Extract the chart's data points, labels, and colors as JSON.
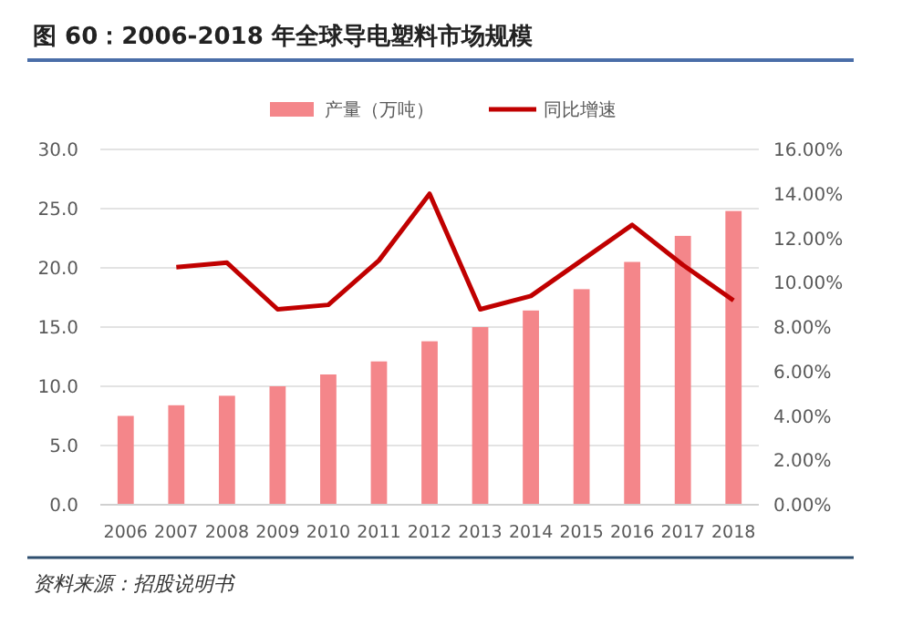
{
  "chart_data": {
    "type": "bar",
    "title": "图 60：2006-2018 年全球导电塑料市场规模",
    "categories": [
      "2006",
      "2007",
      "2008",
      "2009",
      "2010",
      "2011",
      "2012",
      "2013",
      "2014",
      "2015",
      "2016",
      "2017",
      "2018"
    ],
    "series": [
      {
        "name": "产量（万吨）",
        "color": "#f4868a",
        "values": [
          7.5,
          8.4,
          9.2,
          10.0,
          11.0,
          12.1,
          13.8,
          15.0,
          16.4,
          18.2,
          20.5,
          22.7,
          24.8
        ]
      },
      {
        "name": "同比增速",
        "type": "line",
        "axis": "y2",
        "color": "#c00000",
        "values": [
          null,
          10.7,
          10.9,
          8.8,
          9.0,
          11.0,
          14.0,
          8.8,
          9.4,
          11.0,
          12.6,
          10.8,
          9.2
        ]
      }
    ],
    "ylim": [
      0,
      30
    ],
    "yticks": [
      {
        "value": 0,
        "label": "0.0"
      },
      {
        "value": 5,
        "label": "5.0"
      },
      {
        "value": 10,
        "label": "10.0"
      },
      {
        "value": 15,
        "label": "15.0"
      },
      {
        "value": 20,
        "label": "20.0"
      },
      {
        "value": 25,
        "label": "25.0"
      },
      {
        "value": 30,
        "label": "30.0"
      }
    ],
    "y2lim": [
      0,
      16
    ],
    "y2ticks": [
      {
        "value": 0,
        "label": "0.00%"
      },
      {
        "value": 2,
        "label": "2.00%"
      },
      {
        "value": 4,
        "label": "4.00%"
      },
      {
        "value": 6,
        "label": "6.00%"
      },
      {
        "value": 8,
        "label": "8.00%"
      },
      {
        "value": 10,
        "label": "10.00%"
      },
      {
        "value": 12,
        "label": "12.00%"
      },
      {
        "value": 14,
        "label": "14.00%"
      },
      {
        "value": 16,
        "label": "16.00%"
      }
    ],
    "grid": "y",
    "legend": "top",
    "annotations": [
      "资料来源：招股说明书"
    ]
  }
}
